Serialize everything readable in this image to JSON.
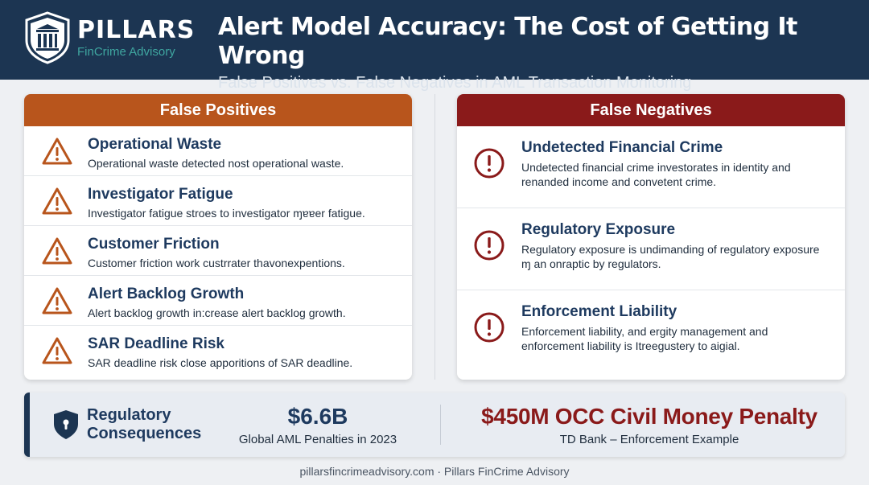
{
  "header": {
    "logo_name": "PILLARS",
    "logo_sub": "FinCrime Advisory",
    "title": "Alert Model Accuracy: The Cost of Getting It Wrong",
    "subtitle": "False Positives vs. False Negatives in AML Transaction Monitoring"
  },
  "false_positives": {
    "heading": "False Positives",
    "icon": "warning-triangle-icon",
    "color": "#b8551c",
    "items": [
      {
        "title": "Operational Waste",
        "desc": "Operational waste detected nost operational waste."
      },
      {
        "title": "Investigator Fatigue",
        "desc": "Investigator fatigue stroes to investigator ɱɐɐer fatigue."
      },
      {
        "title": "Customer Friction",
        "desc": "Customer friction work custrrater thavonexpentions."
      },
      {
        "title": "Alert Backlog Growth",
        "desc": "Alert backlog growth in:crease alert backlog growth."
      },
      {
        "title": "SAR Deadline Risk",
        "desc": "SAR deadline risk close apporitions of SAR deadline."
      }
    ]
  },
  "false_negatives": {
    "heading": "False Negatives",
    "icon": "exclamation-circle-icon",
    "color": "#8a1a1a",
    "items": [
      {
        "title": "Undetected Financial Crime",
        "desc": "Undetected financial crime investorates in identity and renanded income and convetent crime."
      },
      {
        "title": "Regulatory Exposure",
        "desc": "Regulatory exposure is undimanding of regulatory exposure ɱ an onraptic by regulators."
      },
      {
        "title": "Enforcement Liability",
        "desc": "Enforcement liability, and ergity management and enforcement liability is Itreegustery to aigial."
      }
    ]
  },
  "consequences": {
    "label_line1": "Regulatory",
    "label_line2": "Consequences",
    "icon": "shield-icon",
    "stat1_value": "$6.6B",
    "stat1_caption": "Global AML Penalties in 2023",
    "stat2_value": "$450M OCC Civil Money Penalty",
    "stat2_caption": "TD Bank – Enforcement Example"
  },
  "footer": {
    "text": "pillarsfincrimeadvisory.com · Pillars FinCrime Advisory"
  }
}
